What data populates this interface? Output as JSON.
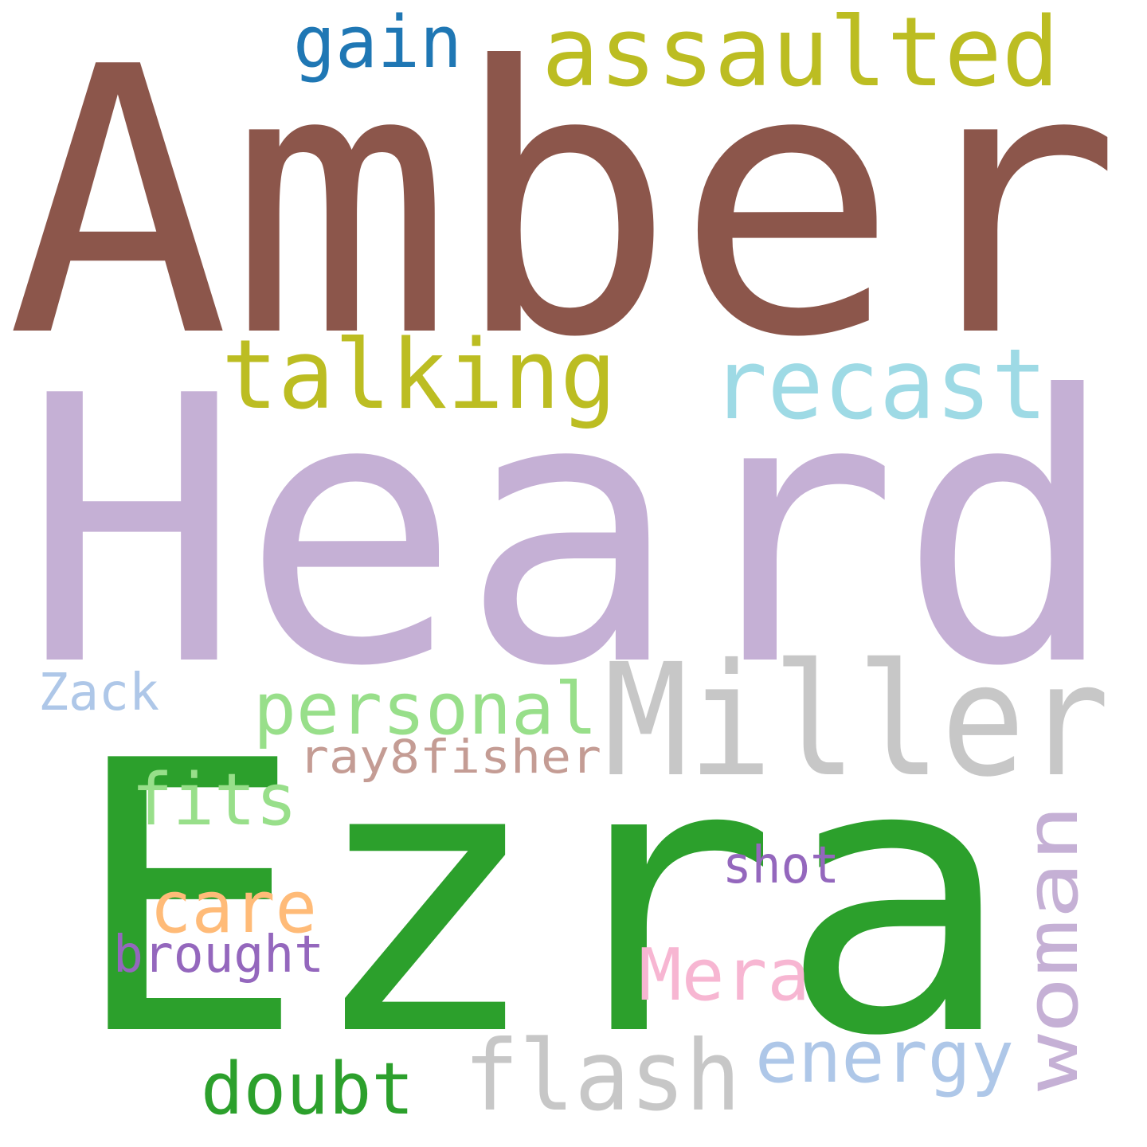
{
  "words": [
    {
      "text": "Amber",
      "color": "#8c564b"
    },
    {
      "text": "Heard",
      "color": "#c5b0d5"
    },
    {
      "text": "Ezra",
      "color": "#2ca02c"
    },
    {
      "text": "Miller",
      "color": "#c7c7c7"
    },
    {
      "text": "assaulted",
      "color": "#bcbd22"
    },
    {
      "text": "gain",
      "color": "#1f77b4"
    },
    {
      "text": "talking",
      "color": "#bcbd22"
    },
    {
      "text": "recast",
      "color": "#9edae5"
    },
    {
      "text": "personal",
      "color": "#98df8a"
    },
    {
      "text": "Zack",
      "color": "#aec7e8"
    },
    {
      "text": "ray8fisher",
      "color": "#c49c94"
    },
    {
      "text": "fits",
      "color": "#98df8a"
    },
    {
      "text": "care",
      "color": "#ffbb78"
    },
    {
      "text": "brought",
      "color": "#9467bd"
    },
    {
      "text": "shot",
      "color": "#9467bd"
    },
    {
      "text": "Mera",
      "color": "#f7b6d2"
    },
    {
      "text": "woman",
      "color": "#c5b0d5"
    },
    {
      "text": "flash",
      "color": "#c7c7c7"
    },
    {
      "text": "energy",
      "color": "#aec7e8"
    },
    {
      "text": "doubt",
      "color": "#2ca02c"
    }
  ]
}
